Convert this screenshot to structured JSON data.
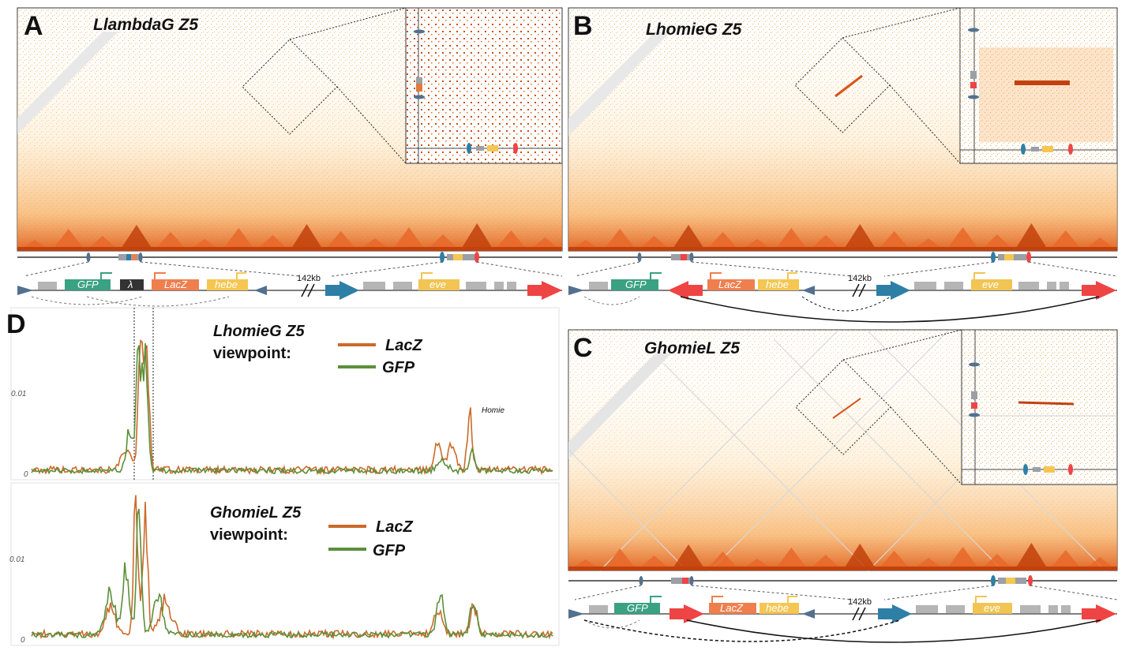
{
  "panels": {
    "A": {
      "label": "A",
      "title": "LlambdaG Z5"
    },
    "B": {
      "label": "B",
      "title": "LhomieG Z5"
    },
    "C": {
      "label": "C",
      "title": "GhomieL Z5"
    },
    "D": {
      "label": "D"
    }
  },
  "construct": {
    "gfp": "GFP",
    "lambda": "λ",
    "lacz": "LacZ",
    "hebe": "hebe",
    "eve": "eve",
    "distance": "142kb"
  },
  "colors": {
    "lacz": "#cc6a2a",
    "gfp": "#5b8f3a",
    "gfp_box": "#3aa182",
    "lacz_box": "#ef7f4f",
    "hebe_box": "#f5c652",
    "eve_box": "#f1c453",
    "homie_arrow": "#ef4444",
    "nhomie_arrow": "#2e7fa6",
    "heat_high": "#c2410c",
    "heat_mid": "#f59e0b"
  },
  "viewpoints": [
    {
      "name": "LhomieG Z5",
      "label": "viewpoint:",
      "legend": [
        "LacZ",
        "GFP"
      ],
      "annotation": "Homie",
      "yticks": [
        "0.01",
        "0"
      ]
    },
    {
      "name": "GhomieL Z5",
      "label": "viewpoint:",
      "legend": [
        "LacZ",
        "GFP"
      ],
      "yticks": [
        "0.01",
        "0"
      ]
    }
  ]
}
